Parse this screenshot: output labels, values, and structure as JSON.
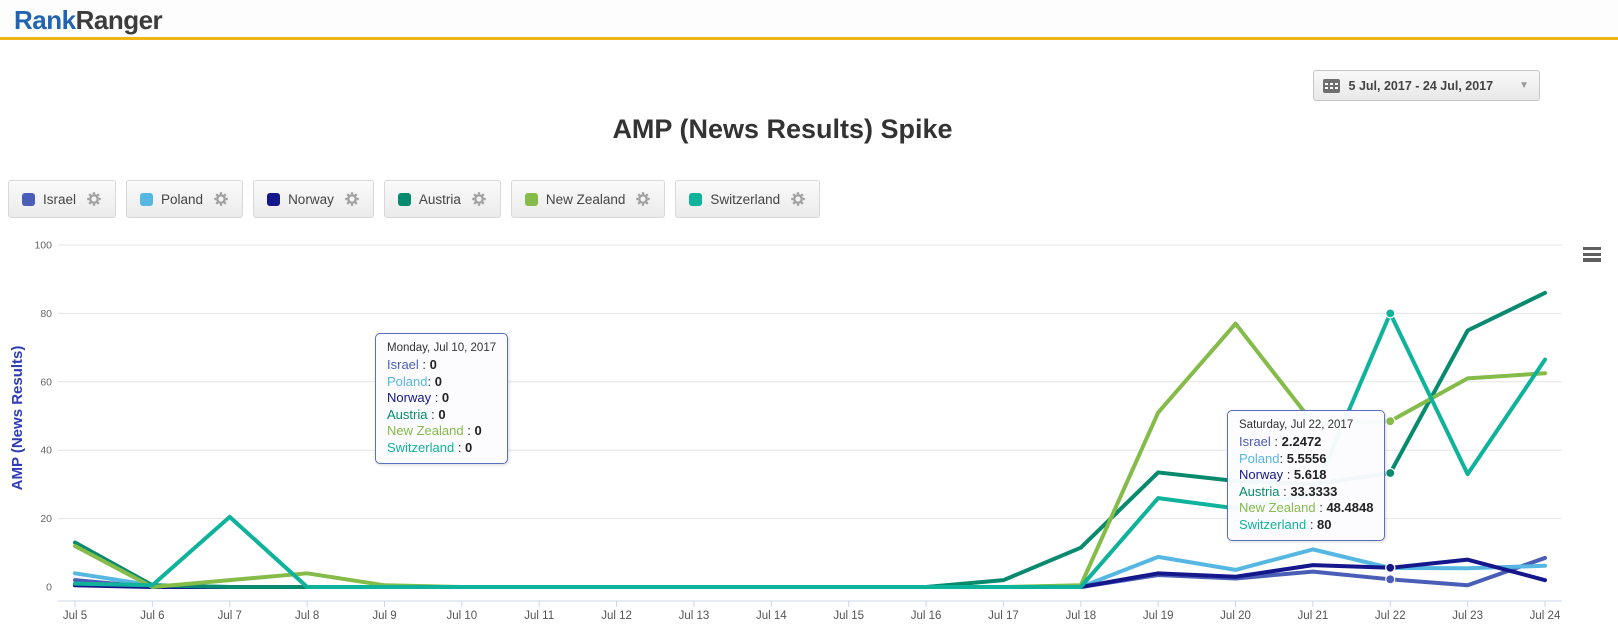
{
  "header": {
    "logo_part1": "Rank",
    "logo_part2": "Ranger"
  },
  "datepicker": {
    "label": "5 Jul, 2017 - 24 Jul, 2017"
  },
  "page_title": "AMP (News Results) Spike",
  "legend": {
    "items": [
      {
        "label": "Israel",
        "color": "#4a5eb8"
      },
      {
        "label": "Poland",
        "color": "#56b8e2"
      },
      {
        "label": "Norway",
        "color": "#14188c"
      },
      {
        "label": "Austria",
        "color": "#078a6e"
      },
      {
        "label": "New Zealand",
        "color": "#85bb49"
      },
      {
        "label": "Switzerland",
        "color": "#0fb29a"
      }
    ]
  },
  "chart_data": {
    "type": "line",
    "title": "AMP (News Results) Spike",
    "xlabel": "",
    "ylabel": "AMP (News Results)",
    "ylim": [
      0,
      100
    ],
    "yticks": [
      0,
      20,
      40,
      60,
      80,
      100
    ],
    "grid": true,
    "legend_position": "top",
    "x": [
      "Jul 5",
      "Jul 6",
      "Jul 7",
      "Jul 8",
      "Jul 9",
      "Jul 10",
      "Jul 11",
      "Jul 12",
      "Jul 13",
      "Jul 14",
      "Jul 15",
      "Jul 16",
      "Jul 17",
      "Jul 18",
      "Jul 19",
      "Jul 20",
      "Jul 21",
      "Jul 22",
      "Jul 23",
      "Jul 24"
    ],
    "marker_day": "Jul 22",
    "series": [
      {
        "name": "Israel",
        "color": "#4a5eb8",
        "values": [
          2,
          0,
          0,
          0,
          0,
          0,
          0,
          0,
          0,
          0,
          0,
          0,
          0,
          0,
          3.5,
          2.5,
          4.5,
          2.2472,
          0.5,
          8.5
        ]
      },
      {
        "name": "Poland",
        "color": "#56b8e2",
        "values": [
          4,
          0.5,
          0,
          0,
          0,
          0,
          0,
          0,
          0,
          0,
          0,
          0,
          0,
          0,
          8.8,
          5,
          11,
          5.5556,
          5.5,
          6.2
        ]
      },
      {
        "name": "Norway",
        "color": "#14188c",
        "values": [
          0.5,
          0,
          0,
          0,
          0,
          0,
          0,
          0,
          0,
          0,
          0,
          0,
          0,
          0,
          4,
          3,
          6.4,
          5.618,
          8,
          2
        ]
      },
      {
        "name": "Austria",
        "color": "#078a6e",
        "values": [
          13,
          0.5,
          0,
          0,
          0,
          0,
          0,
          0,
          0,
          0,
          0,
          0,
          2,
          11.5,
          33.5,
          31,
          30,
          33.3333,
          75,
          86
        ]
      },
      {
        "name": "New Zealand",
        "color": "#85bb49",
        "values": [
          12,
          0,
          2,
          4,
          0.5,
          0,
          0,
          0,
          0,
          0,
          0,
          0,
          0,
          0.5,
          51,
          77,
          48,
          48.4848,
          61,
          62.5
        ]
      },
      {
        "name": "Switzerland",
        "color": "#0fb29a",
        "values": [
          1,
          0.5,
          20.5,
          0,
          0,
          0,
          0,
          0,
          0,
          0,
          0,
          0,
          0,
          0,
          26,
          23,
          27,
          80,
          33,
          66.5
        ]
      }
    ]
  },
  "tooltips": [
    {
      "title": "Monday, Jul 10, 2017",
      "rows": [
        {
          "name": "Israel",
          "sep": " : ",
          "value": "0"
        },
        {
          "name": "Poland",
          "sep": ": ",
          "value": "0"
        },
        {
          "name": "Norway",
          "sep": " : ",
          "value": "0"
        },
        {
          "name": "Austria",
          "sep": " : ",
          "value": "0"
        },
        {
          "name": "New Zealand",
          "sep": " : ",
          "value": "0"
        },
        {
          "name": "Switzerland",
          "sep": " : ",
          "value": "0"
        }
      ]
    },
    {
      "title": "Saturday, Jul 22, 2017",
      "rows": [
        {
          "name": "Israel",
          "sep": " : ",
          "value": "2.2472"
        },
        {
          "name": "Poland",
          "sep": ": ",
          "value": "5.5556"
        },
        {
          "name": "Norway",
          "sep": " : ",
          "value": "5.618"
        },
        {
          "name": "Austria",
          "sep": " : ",
          "value": "33.3333"
        },
        {
          "name": "New Zealand",
          "sep": " : ",
          "value": "48.4848"
        },
        {
          "name": "Switzerland",
          "sep": " : ",
          "value": "80"
        }
      ]
    }
  ],
  "colors": {
    "accent_bar": "#f0b417",
    "axis_title": "#2e3db3",
    "grid_line": "#e6e6e6",
    "axis_line": "#ccd6eb"
  }
}
